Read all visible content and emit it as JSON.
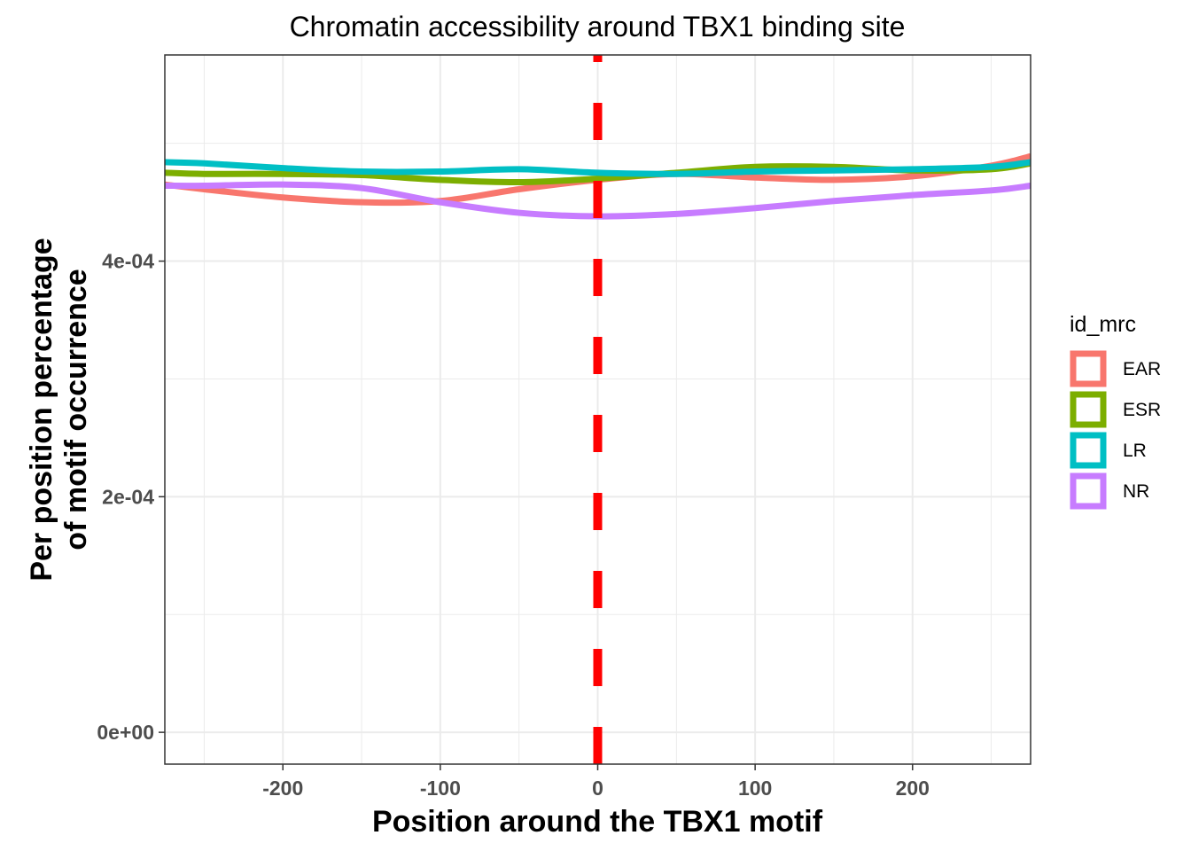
{
  "chart_data": {
    "type": "line",
    "title": "Chromatin accessibility around TBX1 binding site",
    "xlabel": "Position around the TBX1  motif",
    "ylabel_lines": [
      "Per position percentage",
      "of motif occurrence"
    ],
    "xlim": [
      -275,
      275
    ],
    "ylim": [
      -2.7e-05,
      0.000575
    ],
    "x_ticks": [
      -200,
      -100,
      0,
      100,
      200
    ],
    "x_tick_labels": [
      "-200",
      "-100",
      "0",
      "100",
      "200"
    ],
    "y_ticks": [
      0,
      0.0002,
      0.0004
    ],
    "y_tick_labels": [
      "0e+00",
      "2e-04",
      "4e-04"
    ],
    "grid": true,
    "legend": {
      "title": "id_mrc",
      "position": "right"
    },
    "vline": {
      "x": 0,
      "color": "#FF0000",
      "style": "dashed"
    },
    "series": [
      {
        "name": "EAR",
        "color": "#F8766D",
        "x": [
          -275,
          -250,
          -200,
          -150,
          -100,
          -50,
          0,
          50,
          100,
          150,
          200,
          250,
          275
        ],
        "y": [
          0.000465,
          0.000461,
          0.000454,
          0.00045,
          0.000451,
          0.000461,
          0.000469,
          0.000474,
          0.000471,
          0.000469,
          0.000472,
          0.000481,
          0.000489
        ]
      },
      {
        "name": "ESR",
        "color": "#7CAE00",
        "x": [
          -275,
          -250,
          -200,
          -150,
          -100,
          -50,
          0,
          50,
          100,
          150,
          200,
          250,
          275
        ],
        "y": [
          0.000475,
          0.000474,
          0.000474,
          0.000473,
          0.000469,
          0.000467,
          0.00047,
          0.000475,
          0.00048,
          0.00048,
          0.000477,
          0.000478,
          0.000483
        ]
      },
      {
        "name": "LR",
        "color": "#00BFC4",
        "x": [
          -275,
          -250,
          -200,
          -150,
          -100,
          -50,
          0,
          50,
          100,
          150,
          200,
          250,
          275
        ],
        "y": [
          0.000484,
          0.000483,
          0.000479,
          0.000476,
          0.000476,
          0.000478,
          0.000475,
          0.000474,
          0.000476,
          0.000477,
          0.000478,
          0.00048,
          0.000484
        ]
      },
      {
        "name": "NR",
        "color": "#C77CFF",
        "x": [
          -275,
          -250,
          -200,
          -150,
          -100,
          -50,
          0,
          50,
          100,
          150,
          200,
          250,
          275
        ],
        "y": [
          0.000464,
          0.000464,
          0.000465,
          0.000462,
          0.00045,
          0.000441,
          0.000438,
          0.00044,
          0.000445,
          0.000451,
          0.000456,
          0.00046,
          0.000464
        ]
      }
    ]
  }
}
